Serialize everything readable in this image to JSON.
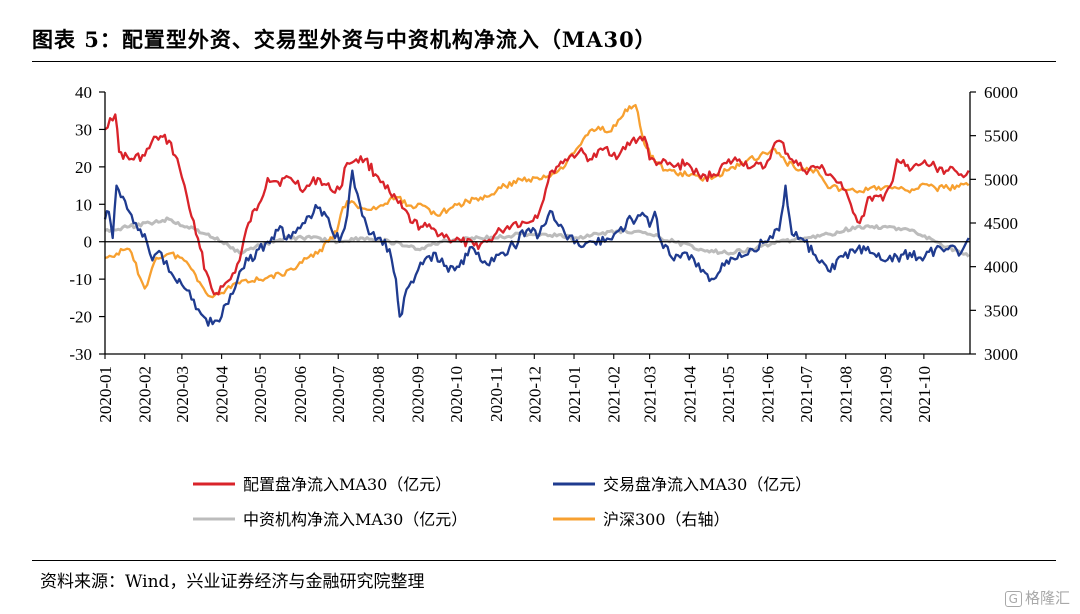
{
  "figure": {
    "title": "图表 5：配置型外资、交易型外资与中资机构净流入（MA30）",
    "source": "资料来源：Wind，兴业证券经济与金融研究院整理",
    "watermark": "格隆汇"
  },
  "chart_data": {
    "type": "line",
    "title": "",
    "xlabel": "",
    "ylabel": "",
    "y2label": "",
    "ylim": [
      -30,
      40
    ],
    "y2lim": [
      3000,
      6000
    ],
    "yticks": [
      40,
      30,
      20,
      10,
      0,
      -10,
      -20,
      -30
    ],
    "y2ticks": [
      6000,
      5500,
      5000,
      4500,
      4000,
      3500,
      3000
    ],
    "xlim": [
      "2020-01-01",
      "2021-11-06"
    ],
    "xticks": [
      "2020-01",
      "2020-02",
      "2020-03",
      "2020-04",
      "2020-05",
      "2020-06",
      "2020-07",
      "2020-08",
      "2020-09",
      "2020-10",
      "2020-11",
      "2020-12",
      "2021-01",
      "2021-02",
      "2021-03",
      "2021-04",
      "2021-05",
      "2021-06",
      "2021-07",
      "2021-08",
      "2021-09",
      "2021-10"
    ],
    "grid": false,
    "legend_position": "bottom",
    "zero_line": true,
    "series": [
      {
        "name": "配置盘净流入MA30（亿元）",
        "axis": "left",
        "color": "#d9232a",
        "x": [
          "2020-01-01",
          "2020-01-05",
          "2020-01-09",
          "2020-01-12",
          "2020-01-20",
          "2020-02-01",
          "2020-02-10",
          "2020-02-20",
          "2020-02-28",
          "2020-03-05",
          "2020-03-12",
          "2020-03-20",
          "2020-03-26",
          "2020-04-02",
          "2020-04-08",
          "2020-04-15",
          "2020-04-22",
          "2020-04-30",
          "2020-05-07",
          "2020-05-15",
          "2020-05-25",
          "2020-06-05",
          "2020-06-15",
          "2020-06-25",
          "2020-07-02",
          "2020-07-08",
          "2020-07-15",
          "2020-07-22",
          "2020-07-30",
          "2020-08-05",
          "2020-08-12",
          "2020-08-20",
          "2020-08-28",
          "2020-09-05",
          "2020-09-15",
          "2020-09-25",
          "2020-10-05",
          "2020-10-15",
          "2020-10-25",
          "2020-11-05",
          "2020-11-15",
          "2020-11-25",
          "2020-12-05",
          "2020-12-10",
          "2020-12-15",
          "2020-12-25",
          "2021-01-05",
          "2021-01-15",
          "2021-01-25",
          "2021-02-05",
          "2021-02-15",
          "2021-02-25",
          "2021-03-01",
          "2021-03-10",
          "2021-03-20",
          "2021-03-30",
          "2021-04-10",
          "2021-04-20",
          "2021-04-30",
          "2021-05-10",
          "2021-05-20",
          "2021-05-30",
          "2021-06-05",
          "2021-06-10",
          "2021-06-20",
          "2021-06-30",
          "2021-07-10",
          "2021-07-20",
          "2021-07-30",
          "2021-08-05",
          "2021-08-12",
          "2021-08-20",
          "2021-08-30",
          "2021-09-05",
          "2021-09-10",
          "2021-09-20",
          "2021-09-30",
          "2021-10-10",
          "2021-10-20",
          "2021-10-30",
          "2021-11-05"
        ],
        "values": [
          30,
          33,
          34,
          24,
          22,
          23,
          28,
          27,
          20,
          12,
          2,
          -8,
          -14,
          -12,
          -10,
          -5,
          5,
          10,
          17,
          16,
          17,
          14,
          17,
          14,
          14,
          21,
          22,
          22,
          18,
          16,
          12,
          9,
          5,
          4,
          3,
          1,
          0,
          -1,
          0,
          3,
          5,
          5,
          8,
          14,
          19,
          22,
          24,
          22,
          25,
          23,
          27,
          28,
          22,
          21,
          20,
          21,
          17,
          18,
          21,
          22,
          20,
          20,
          25,
          27,
          22,
          19,
          20,
          18,
          14,
          10,
          5,
          12,
          11,
          15,
          22,
          19,
          21,
          20,
          19,
          18,
          19
        ]
      },
      {
        "name": "交易盘净流入MA30（亿元）",
        "axis": "left",
        "color": "#1f3b8f",
        "x": [
          "2020-01-01",
          "2020-01-04",
          "2020-01-07",
          "2020-01-10",
          "2020-01-15",
          "2020-01-20",
          "2020-01-25",
          "2020-02-01",
          "2020-02-07",
          "2020-02-14",
          "2020-02-20",
          "2020-02-28",
          "2020-03-05",
          "2020-03-12",
          "2020-03-18",
          "2020-03-25",
          "2020-04-01",
          "2020-04-08",
          "2020-04-15",
          "2020-04-22",
          "2020-04-30",
          "2020-05-07",
          "2020-05-15",
          "2020-05-25",
          "2020-06-05",
          "2020-06-15",
          "2020-06-25",
          "2020-07-02",
          "2020-07-08",
          "2020-07-12",
          "2020-07-18",
          "2020-07-25",
          "2020-08-01",
          "2020-08-10",
          "2020-08-15",
          "2020-08-18",
          "2020-08-25",
          "2020-09-05",
          "2020-09-15",
          "2020-09-25",
          "2020-10-05",
          "2020-10-15",
          "2020-10-25",
          "2020-11-05",
          "2020-11-15",
          "2020-11-25",
          "2020-12-05",
          "2020-12-15",
          "2020-12-25",
          "2021-01-05",
          "2021-01-15",
          "2021-01-25",
          "2021-02-05",
          "2021-02-15",
          "2021-02-25",
          "2021-03-01",
          "2021-03-05",
          "2021-03-10",
          "2021-03-20",
          "2021-03-30",
          "2021-04-10",
          "2021-04-20",
          "2021-04-30",
          "2021-05-10",
          "2021-05-20",
          "2021-05-30",
          "2021-06-05",
          "2021-06-10",
          "2021-06-15",
          "2021-06-20",
          "2021-06-30",
          "2021-07-10",
          "2021-07-20",
          "2021-07-30",
          "2021-08-10",
          "2021-08-20",
          "2021-08-30",
          "2021-09-10",
          "2021-09-20",
          "2021-09-30",
          "2021-10-10",
          "2021-10-20",
          "2021-10-30",
          "2021-11-05"
        ],
        "values": [
          6,
          8,
          1,
          15,
          12,
          8,
          5,
          2,
          -5,
          -3,
          -8,
          -10,
          -13,
          -18,
          -20,
          -22,
          -20,
          -14,
          -8,
          -5,
          -2,
          0,
          3,
          1,
          5,
          9,
          4,
          0,
          7,
          19,
          10,
          2,
          1,
          -2,
          -10,
          -20,
          -12,
          -6,
          -3,
          -8,
          -5,
          -2,
          -6,
          -3,
          -1,
          3,
          2,
          8,
          2,
          -1,
          0,
          0,
          3,
          6,
          7,
          4,
          8,
          0,
          -5,
          -3,
          -8,
          -10,
          -5,
          -3,
          -2,
          0,
          1,
          3,
          15,
          2,
          0,
          -5,
          -8,
          -4,
          -2,
          -3,
          -5,
          -4,
          -3,
          -5,
          -2,
          -2,
          -3,
          1
        ]
      },
      {
        "name": "中资机构净流入MA30（亿元）",
        "axis": "left",
        "color": "#bcbcbc",
        "x": [
          "2020-01-01",
          "2020-01-20",
          "2020-02-05",
          "2020-02-20",
          "2020-03-05",
          "2020-03-20",
          "2020-04-01",
          "2020-04-15",
          "2020-05-01",
          "2020-05-20",
          "2020-06-10",
          "2020-07-01",
          "2020-07-20",
          "2020-08-10",
          "2020-09-01",
          "2020-09-20",
          "2020-10-10",
          "2020-10-30",
          "2020-11-20",
          "2020-12-10",
          "2021-01-01",
          "2021-01-20",
          "2021-02-10",
          "2021-03-01",
          "2021-03-20",
          "2021-04-10",
          "2021-04-30",
          "2021-05-20",
          "2021-06-10",
          "2021-06-30",
          "2021-07-20",
          "2021-08-10",
          "2021-08-30",
          "2021-09-20",
          "2021-10-10",
          "2021-10-30",
          "2021-11-05"
        ],
        "values": [
          3,
          4,
          5,
          6,
          4,
          2,
          0,
          -3,
          -1,
          1,
          1,
          0,
          1,
          0,
          -2,
          0,
          1,
          1,
          2,
          2,
          1,
          2,
          3,
          2,
          0,
          -2,
          -3,
          -2,
          0,
          1,
          2,
          4,
          4,
          3,
          0,
          -3,
          -4
        ]
      },
      {
        "name": "沪深300（右轴）",
        "axis": "right",
        "color": "#f7a030",
        "x": [
          "2020-01-01",
          "2020-01-10",
          "2020-01-20",
          "2020-02-01",
          "2020-02-05",
          "2020-02-10",
          "2020-02-20",
          "2020-03-01",
          "2020-03-10",
          "2020-03-18",
          "2020-03-25",
          "2020-04-01",
          "2020-04-10",
          "2020-04-20",
          "2020-04-30",
          "2020-05-10",
          "2020-05-20",
          "2020-06-01",
          "2020-06-15",
          "2020-06-30",
          "2020-07-03",
          "2020-07-08",
          "2020-07-15",
          "2020-07-25",
          "2020-08-05",
          "2020-08-15",
          "2020-08-25",
          "2020-09-05",
          "2020-09-15",
          "2020-09-25",
          "2020-10-10",
          "2020-10-25",
          "2020-11-05",
          "2020-11-20",
          "2020-12-05",
          "2020-12-20",
          "2021-01-01",
          "2021-01-10",
          "2021-01-20",
          "2021-01-30",
          "2021-02-10",
          "2021-02-18",
          "2021-02-25",
          "2021-03-05",
          "2021-03-15",
          "2021-03-30",
          "2021-04-15",
          "2021-04-30",
          "2021-05-15",
          "2021-05-30",
          "2021-06-05",
          "2021-06-15",
          "2021-06-30",
          "2021-07-10",
          "2021-07-20",
          "2021-07-30",
          "2021-08-10",
          "2021-08-20",
          "2021-08-30",
          "2021-09-10",
          "2021-09-20",
          "2021-09-30",
          "2021-10-10",
          "2021-10-20",
          "2021-10-30",
          "2021-11-05"
        ],
        "values": [
          4100,
          4150,
          4200,
          3750,
          3900,
          4100,
          4150,
          4100,
          3950,
          3750,
          3650,
          3700,
          3800,
          3850,
          3850,
          3900,
          3900,
          4050,
          4150,
          4400,
          4600,
          4750,
          4700,
          4650,
          4700,
          4800,
          4700,
          4700,
          4600,
          4650,
          4750,
          4800,
          4900,
          5000,
          5000,
          5100,
          5300,
          5500,
          5600,
          5550,
          5800,
          5850,
          5400,
          5200,
          5100,
          5050,
          5000,
          5100,
          5200,
          5300,
          5350,
          5200,
          5100,
          5100,
          4900,
          4900,
          4850,
          4900,
          4900,
          4900,
          4850,
          4950,
          4900,
          4900,
          4950,
          4930
        ]
      }
    ]
  }
}
